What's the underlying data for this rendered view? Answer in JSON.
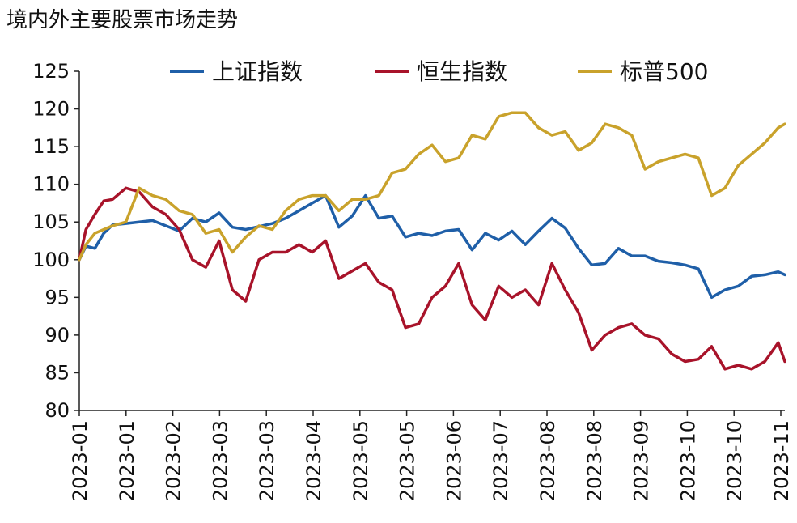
{
  "chart_data": {
    "type": "line",
    "title": "境内外主要股票市场走势",
    "xlabel": "",
    "ylabel": "",
    "ylim": [
      80,
      125
    ],
    "yticks": [
      80,
      85,
      90,
      95,
      100,
      105,
      110,
      115,
      120,
      125
    ],
    "xtick_labels": [
      "2023-01",
      "2023-01",
      "2023-02",
      "2023-03",
      "2023-03",
      "2023-04",
      "2023-05",
      "2023-05",
      "2023-06",
      "2023-07",
      "2023-08",
      "2023-08",
      "2023-09",
      "2023-10",
      "2023-10",
      "2023-11"
    ],
    "grid": false,
    "legend_position": "top",
    "x": [
      "2023-01-01",
      "2023-01-04",
      "2023-01-08",
      "2023-01-12",
      "2023-01-16",
      "2023-01-22",
      "2023-01-28",
      "2023-02-03",
      "2023-02-09",
      "2023-02-15",
      "2023-02-21",
      "2023-02-27",
      "2023-03-05",
      "2023-03-11",
      "2023-03-17",
      "2023-03-23",
      "2023-03-29",
      "2023-04-04",
      "2023-04-10",
      "2023-04-16",
      "2023-04-22",
      "2023-04-28",
      "2023-05-04",
      "2023-05-10",
      "2023-05-16",
      "2023-05-22",
      "2023-05-28",
      "2023-06-03",
      "2023-06-09",
      "2023-06-15",
      "2023-06-21",
      "2023-06-27",
      "2023-07-03",
      "2023-07-09",
      "2023-07-15",
      "2023-07-21",
      "2023-07-27",
      "2023-08-02",
      "2023-08-08",
      "2023-08-14",
      "2023-08-20",
      "2023-08-26",
      "2023-09-01",
      "2023-09-07",
      "2023-09-13",
      "2023-09-19",
      "2023-09-25",
      "2023-10-01",
      "2023-10-07",
      "2023-10-13",
      "2023-10-19",
      "2023-10-25",
      "2023-10-31",
      "2023-11-06",
      "2023-11-12",
      "2023-11-15"
    ],
    "series": [
      {
        "name": "上证指数",
        "color": "#1f5fa8",
        "values": [
          100.0,
          101.8,
          101.5,
          103.5,
          104.6,
          104.8,
          105.0,
          105.2,
          104.5,
          103.8,
          105.5,
          105.0,
          106.2,
          104.3,
          104.0,
          104.4,
          104.8,
          105.5,
          106.5,
          107.5,
          108.5,
          104.3,
          105.8,
          108.5,
          105.5,
          105.8,
          103.0,
          103.5,
          103.2,
          103.8,
          104.0,
          101.3,
          103.5,
          102.6,
          103.8,
          102.0,
          103.8,
          105.5,
          104.2,
          101.5,
          99.3,
          99.5,
          101.5,
          100.5,
          100.5,
          99.8,
          99.6,
          99.3,
          98.8,
          95.0,
          96.0,
          96.5,
          97.8,
          98.0,
          98.4,
          98.0
        ]
      },
      {
        "name": "恒生指数",
        "color": "#a8132a",
        "values": [
          100.0,
          104.0,
          106.0,
          107.8,
          108.0,
          109.5,
          109.0,
          107.0,
          106.0,
          104.0,
          100.0,
          99.0,
          102.5,
          96.0,
          94.5,
          100.0,
          101.0,
          101.0,
          102.0,
          101.0,
          102.5,
          97.5,
          98.5,
          99.5,
          97.0,
          96.0,
          91.0,
          91.5,
          95.0,
          96.5,
          99.5,
          94.0,
          92.0,
          96.5,
          95.0,
          96.0,
          94.0,
          99.5,
          96.0,
          93.0,
          88.0,
          90.0,
          91.0,
          91.5,
          90.0,
          89.5,
          87.5,
          86.5,
          86.8,
          88.5,
          85.5,
          86.0,
          85.5,
          86.5,
          89.0,
          86.5
        ]
      },
      {
        "name": "标普500",
        "color": "#c9a22b",
        "values": [
          100.0,
          102.0,
          103.5,
          104.0,
          104.5,
          105.0,
          109.5,
          108.5,
          108.0,
          106.5,
          106.0,
          103.5,
          104.0,
          101.0,
          103.0,
          104.5,
          104.0,
          106.5,
          108.0,
          108.5,
          108.5,
          106.5,
          108.0,
          108.0,
          108.5,
          111.5,
          112.0,
          114.0,
          115.2,
          113.0,
          113.5,
          116.5,
          116.0,
          119.0,
          119.5,
          119.5,
          117.5,
          116.5,
          117.0,
          114.5,
          115.5,
          118.0,
          117.5,
          116.5,
          112.0,
          113.0,
          113.5,
          114.0,
          113.5,
          108.5,
          109.5,
          112.5,
          114.0,
          115.5,
          117.5,
          118.0
        ]
      }
    ]
  }
}
